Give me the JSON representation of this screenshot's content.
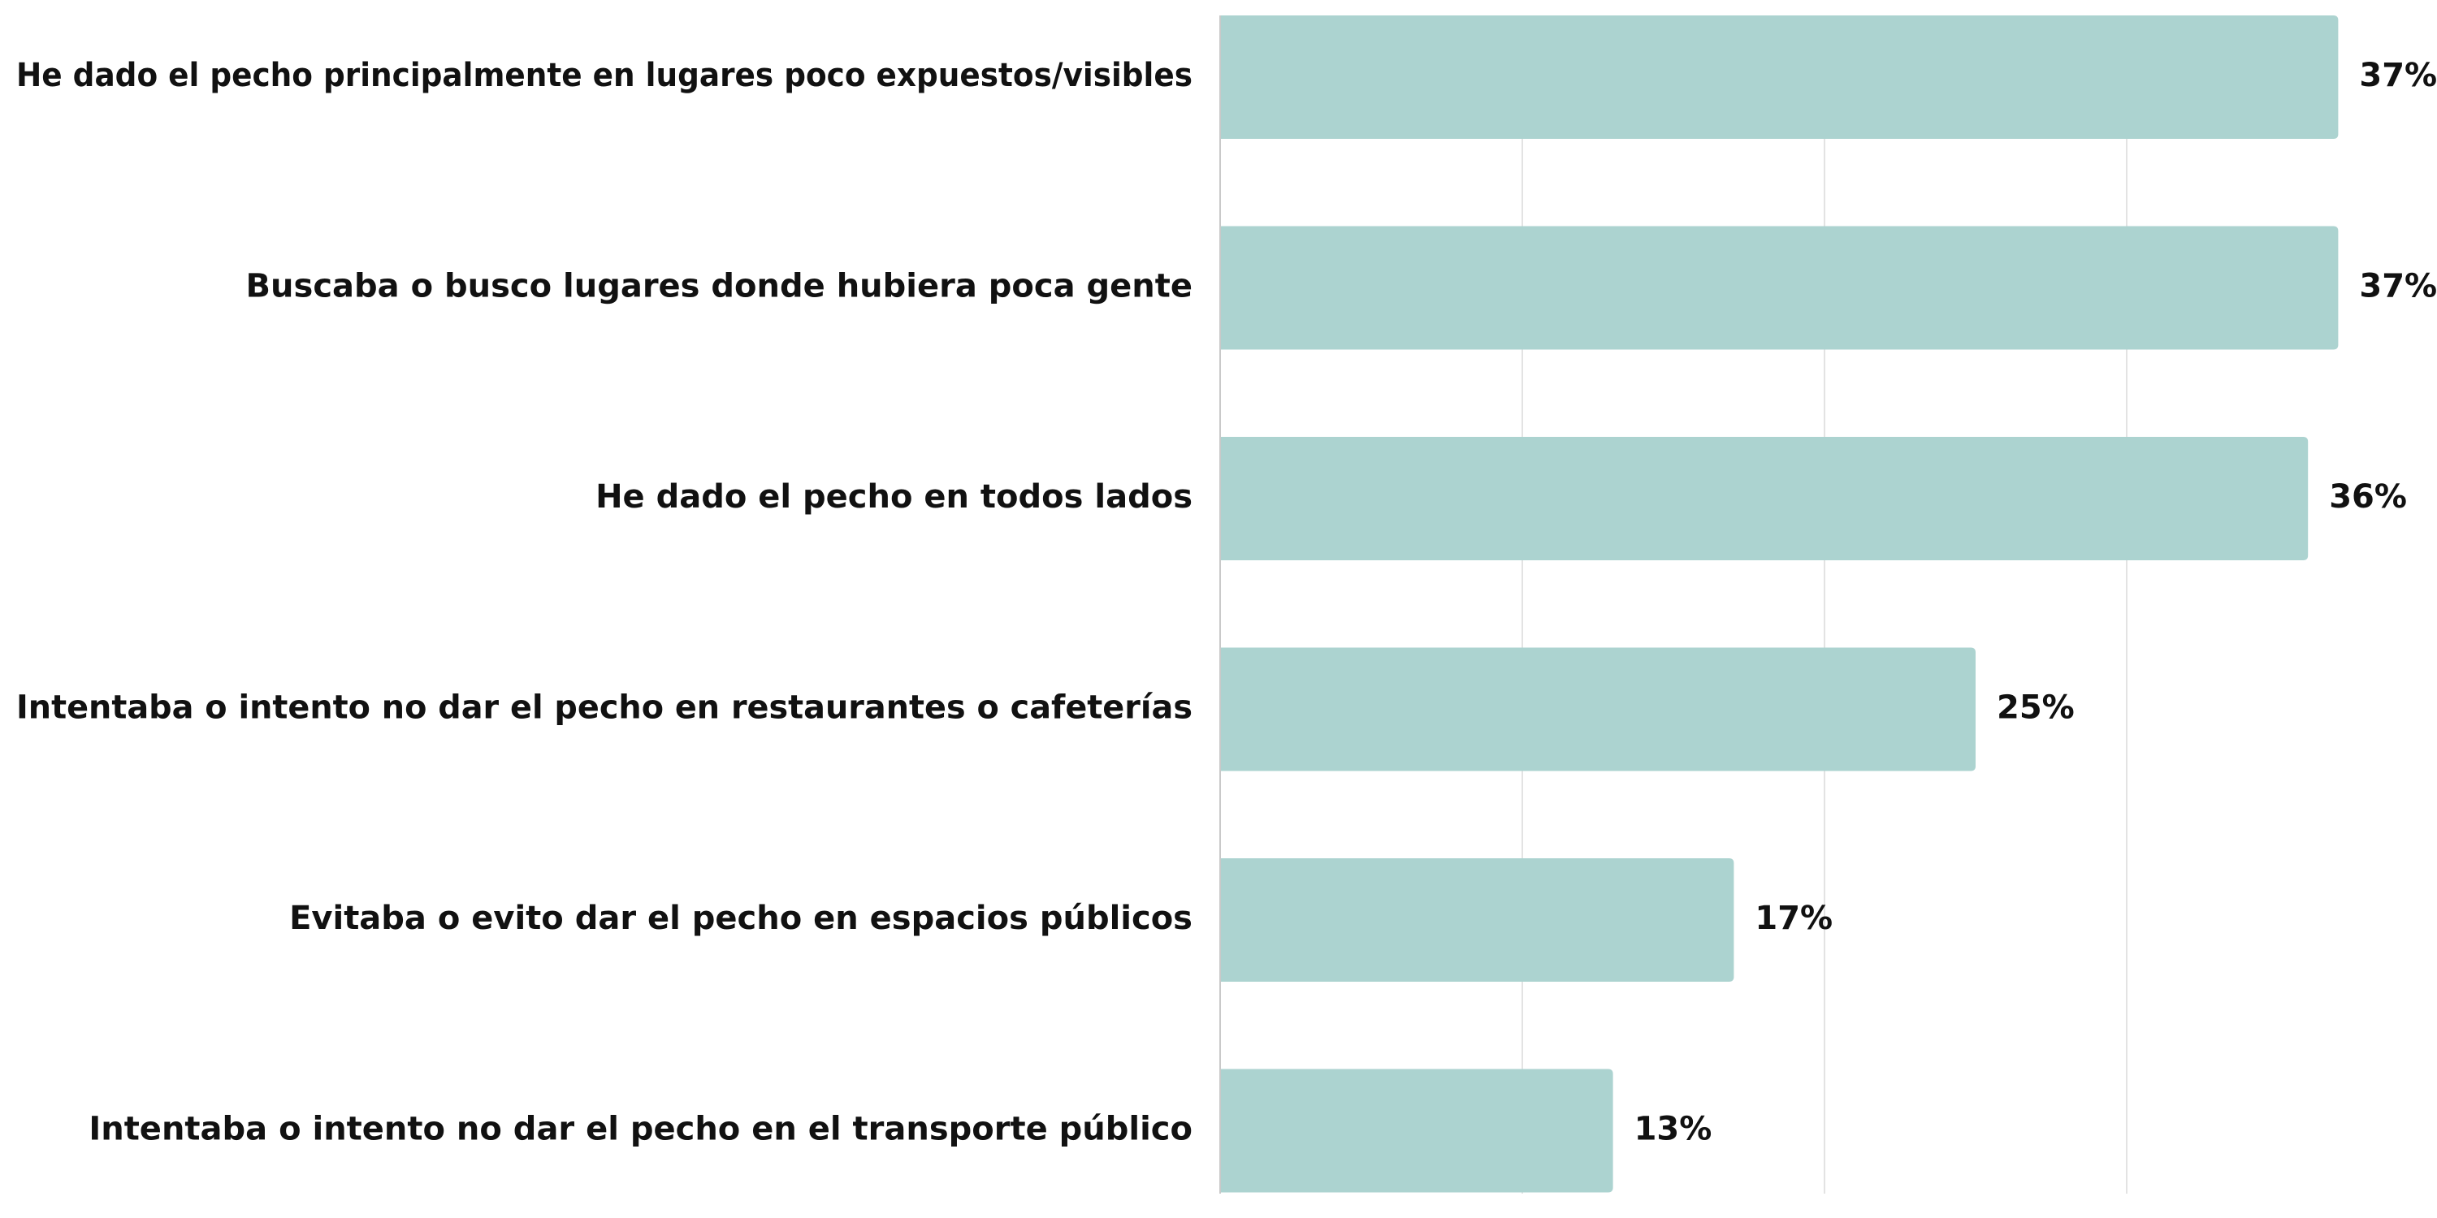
{
  "chart_data": {
    "type": "bar",
    "orientation": "horizontal",
    "categories": [
      "He dado el pecho principalmente en lugares poco expuestos/visibles",
      "Buscaba o busco lugares donde hubiera poca gente",
      "He dado el pecho en todos lados",
      "Intentaba o intento no dar el pecho en restaurantes o cafeterías",
      "Evitaba o evito dar el pecho en espacios públicos",
      "Intentaba o intento no dar el pecho en el transporte público"
    ],
    "values": [
      37,
      37,
      36,
      25,
      17,
      13
    ],
    "value_labels": [
      "37%",
      "37%",
      "36%",
      "25%",
      "17%",
      "13%"
    ],
    "unit": "%",
    "xlim": [
      0,
      40
    ],
    "x_gridlines": [
      10,
      20,
      30
    ],
    "grid": true,
    "legend": "none",
    "colors": {
      "bar": "#acd3d0",
      "text": "#111111",
      "grid": "#e3e3e3",
      "axis": "#c9c9c9"
    }
  }
}
